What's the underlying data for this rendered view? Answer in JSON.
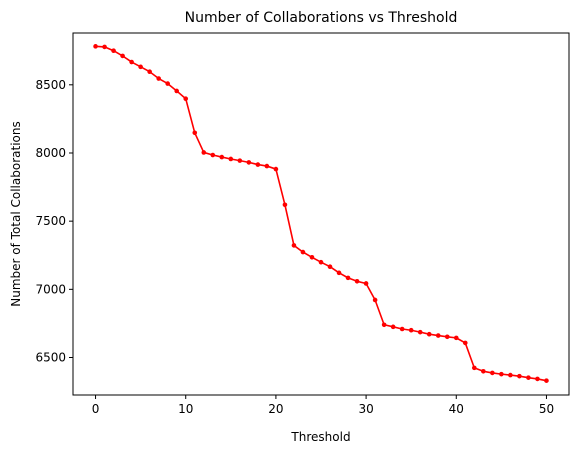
{
  "chart_data": {
    "type": "line",
    "title": "Number of Collaborations vs Threshold",
    "xlabel": "Threshold",
    "ylabel": "Number of Total Collaborations",
    "xlim": [
      -2.5,
      52.5
    ],
    "ylim": [
      6225,
      8880
    ],
    "xticks": [
      0,
      10,
      20,
      30,
      40,
      50
    ],
    "yticks": [
      6500,
      7000,
      7500,
      8000,
      8500
    ],
    "grid": false,
    "legend": "none",
    "colors": {
      "line": "#ff0000",
      "axes": "#000000",
      "background": "#ffffff"
    },
    "series": [
      {
        "marker": "circle",
        "x": [
          0,
          1,
          2,
          3,
          4,
          5,
          6,
          7,
          8,
          9,
          10,
          11,
          12,
          13,
          14,
          15,
          16,
          17,
          18,
          19,
          20,
          21,
          22,
          23,
          24,
          25,
          26,
          27,
          28,
          29,
          30,
          31,
          32,
          33,
          34,
          35,
          36,
          37,
          38,
          39,
          40,
          41,
          42,
          43,
          44,
          45,
          46,
          47,
          48,
          49,
          50
        ],
        "y": [
          8782,
          8778,
          8750,
          8712,
          8667,
          8632,
          8596,
          8546,
          8509,
          8455,
          8398,
          8148,
          8004,
          7985,
          7970,
          7956,
          7944,
          7931,
          7915,
          7904,
          7882,
          7620,
          7322,
          7273,
          7235,
          7199,
          7166,
          7121,
          7084,
          7059,
          7043,
          6922,
          6740,
          6725,
          6709,
          6700,
          6686,
          6671,
          6661,
          6652,
          6644,
          6607,
          6424,
          6399,
          6387,
          6378,
          6371,
          6363,
          6352,
          6343,
          6330
        ]
      }
    ]
  }
}
